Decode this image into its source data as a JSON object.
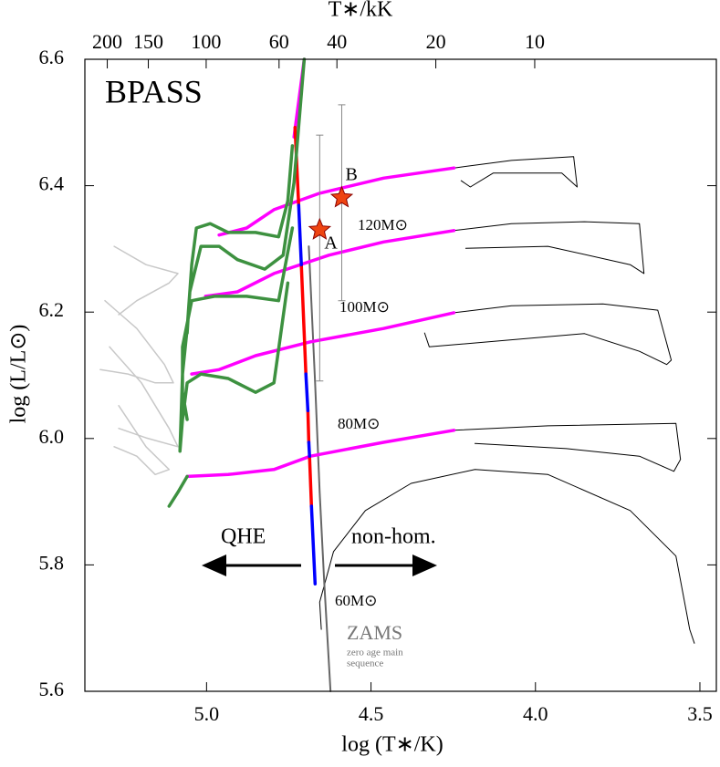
{
  "chart_data": {
    "type": "line",
    "title": "BPASS",
    "x_label": "log (T∗/K)",
    "x2_label": "T∗/kK",
    "y_label": "log (L/L⊙)",
    "xlim": [
      5.37,
      3.45
    ],
    "xticks": [
      {
        "value": 5,
        "label": "5.0"
      },
      4.5,
      {
        "value": 4,
        "label": "4.0"
      },
      3.5
    ],
    "x2lim": [
      234,
      2.8
    ],
    "x2scale": "log",
    "x2ticks": [
      200,
      150,
      100,
      60,
      40,
      20,
      10
    ],
    "ylim": [
      5.6,
      6.6
    ],
    "yticks": [
      5.6,
      5.8,
      {
        "value": 6,
        "label": "6.0"
      },
      6.2,
      6.4,
      6.6
    ],
    "series": [
      {
        "color": "#c8c8c8",
        "width": 1.5,
        "x": [
          5.281,
          5.184,
          5.087,
          5.114,
          5.212,
          5.267,
          null,
          5.309,
          5.212,
          5.128,
          5.101,
          5.156,
          5.239,
          5.323,
          null,
          5.295,
          5.198,
          5.114,
          5.087,
          5.184,
          5.267,
          null,
          5.267,
          5.184,
          5.114,
          5.156,
          5.212,
          5.281
        ],
        "y": [
          6.304,
          6.275,
          6.261,
          6.246,
          6.218,
          6.196,
          null,
          6.218,
          6.174,
          6.117,
          6.088,
          6.088,
          6.102,
          6.109,
          null,
          6.145,
          6.088,
          6.016,
          5.987,
          6.001,
          6.016,
          null,
          6.052,
          5.987,
          5.951,
          5.943,
          5.972,
          5.987
        ]
      },
      {
        "color": "#000000",
        "width": 1,
        "x": [
          4.248,
          4.073,
          3.884,
          3.873,
          3.92,
          4.128,
          4.198,
          4.226,
          null,
          4.248,
          4.073,
          3.851,
          3.684,
          3.67,
          3.712,
          3.962,
          4.212,
          null,
          4.248,
          4.073,
          3.795,
          3.628,
          3.587,
          3.601,
          3.684,
          3.851,
          4.323,
          4.337,
          null,
          4.248,
          3.962,
          3.573,
          3.559,
          3.579,
          3.684,
          3.906,
          4.184,
          null,
          4.651,
          4.656,
          4.614,
          4.517,
          4.378,
          4.184,
          3.962,
          3.712,
          3.573,
          3.531,
          3.517
        ],
        "y": [
          6.428,
          6.44,
          6.446,
          6.398,
          6.42,
          6.42,
          6.398,
          6.408,
          null,
          6.329,
          6.34,
          6.343,
          6.34,
          6.261,
          6.275,
          6.304,
          6.301,
          null,
          6.199,
          6.21,
          6.213,
          6.203,
          6.124,
          6.117,
          6.138,
          6.166,
          6.145,
          6.167,
          null,
          6.013,
          6.02,
          6.024,
          5.967,
          5.948,
          5.972,
          5.984,
          5.992,
          null,
          5.698,
          5.741,
          5.821,
          5.886,
          5.929,
          5.951,
          5.943,
          5.886,
          5.814,
          5.698,
          5.676
        ]
      },
      {
        "color": "#666666",
        "width": 2,
        "x": [
          4.689,
          4.67,
          4.656,
          4.642,
          4.623
        ],
        "y": [
          6.304,
          6.088,
          5.915,
          5.77,
          5.6
        ]
      },
      {
        "color": "#ff00ff",
        "width": 3.5,
        "x": [
          4.962,
          4.878,
          4.795,
          4.656,
          4.462,
          4.248,
          null,
          5.003,
          4.906,
          4.795,
          4.628,
          4.462,
          4.248,
          null,
          5.045,
          4.962,
          4.851,
          4.684,
          4.462,
          4.248,
          null,
          5.059,
          4.934,
          4.795,
          4.684,
          4.462,
          4.248,
          null,
          4.734,
          4.703
        ],
        "y": [
          6.322,
          6.333,
          6.362,
          6.388,
          6.412,
          6.428,
          null,
          6.225,
          6.232,
          6.261,
          6.29,
          6.311,
          6.329,
          null,
          6.102,
          6.109,
          6.131,
          6.153,
          6.174,
          6.199,
          null,
          5.94,
          5.943,
          5.951,
          5.972,
          5.994,
          6.013,
          null,
          6.477,
          6.6
        ]
      },
      {
        "color": "#ff0000",
        "width": 3.5,
        "x": [
          4.731,
          4.72,
          null,
          4.712,
          4.698,
          null,
          4.692,
          4.689,
          null,
          4.687,
          4.681
        ],
        "y": [
          6.492,
          6.369,
          null,
          6.275,
          6.102,
          null,
          6.044,
          5.994,
          null,
          5.972,
          5.893
        ]
      },
      {
        "color": "#0000ff",
        "width": 3.5,
        "x": [
          4.72,
          4.712,
          null,
          4.698,
          4.692,
          null,
          4.689,
          4.687,
          null,
          4.681,
          4.67
        ],
        "y": [
          6.369,
          6.275,
          null,
          6.102,
          6.044,
          null,
          5.994,
          5.972,
          null,
          5.893,
          5.77
        ]
      },
      {
        "color": "#3d9140",
        "width": 3.5,
        "x": [
          4.739,
          4.753,
          4.781,
          4.851,
          4.934,
          4.989,
          5.031,
          5.045,
          5.059,
          5.073,
          5.081,
          null,
          4.703,
          4.734,
          4.767,
          4.823,
          4.906,
          4.962,
          5.017,
          5.051,
          5.059,
          null,
          4.739,
          4.781,
          4.878,
          4.976,
          5.045,
          5.073,
          5.073,
          5.059,
          null,
          4.753,
          4.795,
          4.851,
          4.934,
          5.017,
          5.059,
          5.073,
          5.081,
          null,
          5.059,
          5.087,
          5.114
        ],
        "y": [
          6.463,
          6.376,
          6.319,
          6.326,
          6.326,
          6.34,
          6.333,
          6.275,
          6.174,
          6.102,
          5.98,
          null,
          6.6,
          6.405,
          6.29,
          6.268,
          6.283,
          6.304,
          6.304,
          6.232,
          6.167,
          null,
          6.333,
          6.218,
          6.225,
          6.225,
          6.218,
          6.145,
          6.073,
          6.03,
          null,
          6.246,
          6.088,
          6.073,
          6.095,
          6.102,
          6.088,
          6.03,
          5.98,
          null,
          5.94,
          5.915,
          5.893
        ]
      }
    ],
    "stars": {
      "color": "#ee4411",
      "x": [
        4.656,
        4.589
      ],
      "y": [
        6.33,
        6.381
      ],
      "y_low": [
        6.091,
        6.218
      ],
      "y_high": [
        6.48,
        6.528
      ],
      "labels": [
        "A",
        "B"
      ]
    },
    "annotations": [
      "120M⊙",
      "100M⊙",
      "80M⊙",
      "60M⊙",
      "QHE",
      "non-hom.",
      "ZAMS",
      "zero age main",
      "sequence"
    ]
  }
}
